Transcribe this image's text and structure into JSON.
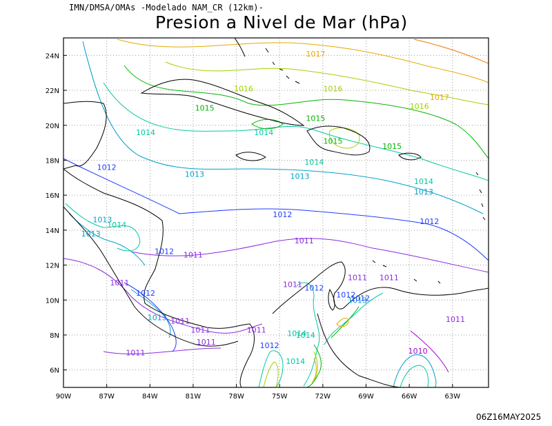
{
  "header": {
    "source": "IMN/DMSA/OMAs -Modelado NAM_CR (12km)-",
    "title": "Presion a Nivel de Mar (hPa)",
    "timestamp": "06Z16MAY2025"
  },
  "axes": {
    "lon_ticks": [
      "90W",
      "87W",
      "84W",
      "81W",
      "78W",
      "75W",
      "72W",
      "69W",
      "66W",
      "63W"
    ],
    "lat_ticks": [
      "24N",
      "22N",
      "20N",
      "18N",
      "16N",
      "14N",
      "12N",
      "10N",
      "8N",
      "6N"
    ],
    "lon_range": [
      -90,
      -60.5
    ],
    "lat_range": [
      5,
      25
    ],
    "grid": "dotted"
  },
  "isobar_colors": {
    "1010": "#a000c8",
    "1011": "#8a2be2",
    "1012": "#1e3cff",
    "1013": "#00a0c8",
    "1014": "#00c8a0",
    "1015": "#00b400",
    "1016": "#a0d200",
    "1017": "#e6aa00",
    "1018": "#f07800"
  },
  "isobar_labels": [
    {
      "text": "1017",
      "lon": -72.5,
      "lat": 24.1,
      "level": "1017"
    },
    {
      "text": "1017",
      "lon": -63.9,
      "lat": 21.6,
      "level": "1017"
    },
    {
      "text": "1016",
      "lon": -77.5,
      "lat": 22.1,
      "level": "1016"
    },
    {
      "text": "1016",
      "lon": -71.3,
      "lat": 22.1,
      "level": "1016"
    },
    {
      "text": "1016",
      "lon": -65.3,
      "lat": 21.1,
      "level": "1016"
    },
    {
      "text": "1015",
      "lon": -80.2,
      "lat": 21.0,
      "level": "1015"
    },
    {
      "text": "1015",
      "lon": -72.5,
      "lat": 20.4,
      "level": "1015"
    },
    {
      "text": "1015",
      "lon": -71.3,
      "lat": 19.1,
      "level": "1015"
    },
    {
      "text": "1015",
      "lon": -67.2,
      "lat": 18.8,
      "level": "1015"
    },
    {
      "text": "1014",
      "lon": -84.3,
      "lat": 19.6,
      "level": "1014"
    },
    {
      "text": "1014",
      "lon": -76.1,
      "lat": 19.6,
      "level": "1014"
    },
    {
      "text": "1014",
      "lon": -72.6,
      "lat": 17.9,
      "level": "1014"
    },
    {
      "text": "1014",
      "lon": -65.0,
      "lat": 16.8,
      "level": "1014"
    },
    {
      "text": "1014",
      "lon": -86.3,
      "lat": 14.3,
      "level": "1014"
    },
    {
      "text": "1014",
      "lon": -73.2,
      "lat": 8.0,
      "level": "1014"
    },
    {
      "text": "1014",
      "lon": -73.9,
      "lat": 6.5,
      "level": "1014"
    },
    {
      "text": "1013",
      "lon": -80.9,
      "lat": 17.2,
      "level": "1013"
    },
    {
      "text": "1013",
      "lon": -73.6,
      "lat": 17.1,
      "level": "1013"
    },
    {
      "text": "1013",
      "lon": -65.0,
      "lat": 16.2,
      "level": "1013"
    },
    {
      "text": "1013",
      "lon": -87.3,
      "lat": 14.6,
      "level": "1013"
    },
    {
      "text": "1013",
      "lon": -88.1,
      "lat": 13.8,
      "level": "1013"
    },
    {
      "text": "1013",
      "lon": -83.5,
      "lat": 9.0,
      "level": "1013"
    },
    {
      "text": "1013",
      "lon": -69.6,
      "lat": 10.0,
      "level": "1013"
    },
    {
      "text": "1012",
      "lon": -87.0,
      "lat": 17.6,
      "level": "1012"
    },
    {
      "text": "1012",
      "lon": -74.8,
      "lat": 14.9,
      "level": "1012"
    },
    {
      "text": "1012",
      "lon": -64.6,
      "lat": 14.5,
      "level": "1012"
    },
    {
      "text": "1012",
      "lon": -83.0,
      "lat": 12.8,
      "level": "1012"
    },
    {
      "text": "1012",
      "lon": -84.3,
      "lat": 10.4,
      "level": "1012"
    },
    {
      "text": "1012",
      "lon": -72.6,
      "lat": 10.7,
      "level": "1012"
    },
    {
      "text": "1012",
      "lon": -70.4,
      "lat": 10.3,
      "level": "1012"
    },
    {
      "text": "1012",
      "lon": -69.4,
      "lat": 10.1,
      "level": "1012"
    },
    {
      "text": "1012",
      "lon": -75.7,
      "lat": 7.4,
      "level": "1012"
    },
    {
      "text": "1011",
      "lon": -73.3,
      "lat": 13.4,
      "level": "1011"
    },
    {
      "text": "1011",
      "lon": -81.0,
      "lat": 12.6,
      "level": "1011"
    },
    {
      "text": "1011",
      "lon": -86.1,
      "lat": 11.0,
      "level": "1011"
    },
    {
      "text": "1011",
      "lon": -74.1,
      "lat": 10.9,
      "level": "1011"
    },
    {
      "text": "1011",
      "lon": -69.6,
      "lat": 11.3,
      "level": "1011"
    },
    {
      "text": "1011",
      "lon": -67.4,
      "lat": 11.3,
      "level": "1011"
    },
    {
      "text": "1011",
      "lon": -81.9,
      "lat": 8.8,
      "level": "1011"
    },
    {
      "text": "1011",
      "lon": -80.5,
      "lat": 8.3,
      "level": "1011"
    },
    {
      "text": "1011",
      "lon": -76.6,
      "lat": 8.3,
      "level": "1011"
    },
    {
      "text": "1011",
      "lon": -80.1,
      "lat": 7.6,
      "level": "1011"
    },
    {
      "text": "1011",
      "lon": -85.0,
      "lat": 7.0,
      "level": "1011"
    },
    {
      "text": "1011",
      "lon": -62.8,
      "lat": 8.9,
      "level": "1011"
    },
    {
      "text": "1010",
      "lon": -65.4,
      "lat": 7.1,
      "level": "1010"
    },
    {
      "text": "1014",
      "lon": -73.8,
      "lat": 8.1,
      "level": "1014"
    }
  ]
}
